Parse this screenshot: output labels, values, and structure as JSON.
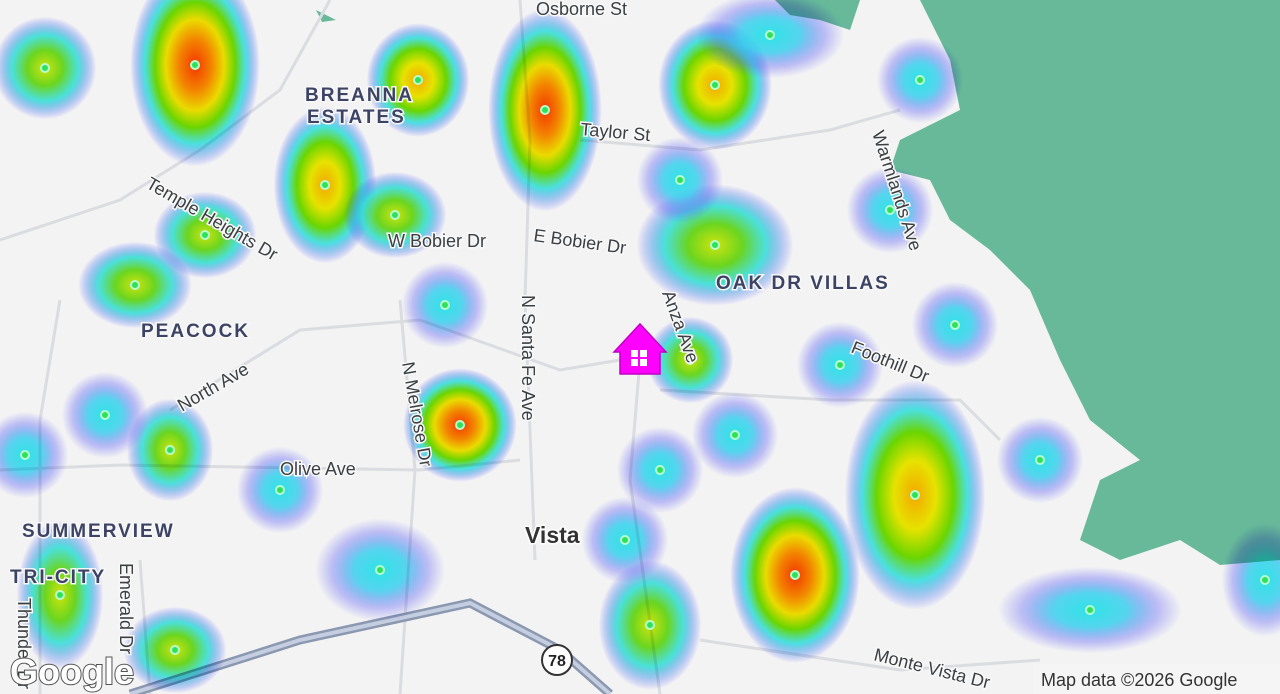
{
  "map": {
    "streets": [
      "Osborne St",
      "Taylor St",
      "W Bobier Dr",
      "E Bobier Dr",
      "Temple Heights Dr",
      "North Ave",
      "N Melrose Dr",
      "N Santa Fe Ave",
      "Olive Ave",
      "Anza Ave",
      "Foothill Dr",
      "Warmlands Ave",
      "Emerald Dr",
      "Thunder Dr",
      "Monte Vista Dr"
    ],
    "neighborhoods": [
      "BREANNA",
      "ESTATES",
      "PEACOCK",
      "OAK DR VILLAS",
      "SUMMERVIEW",
      "TRI-CITY"
    ],
    "place": "Vista",
    "highway_shield": "78",
    "logo": "Google",
    "attribution": "Map data ©2026 Google"
  }
}
